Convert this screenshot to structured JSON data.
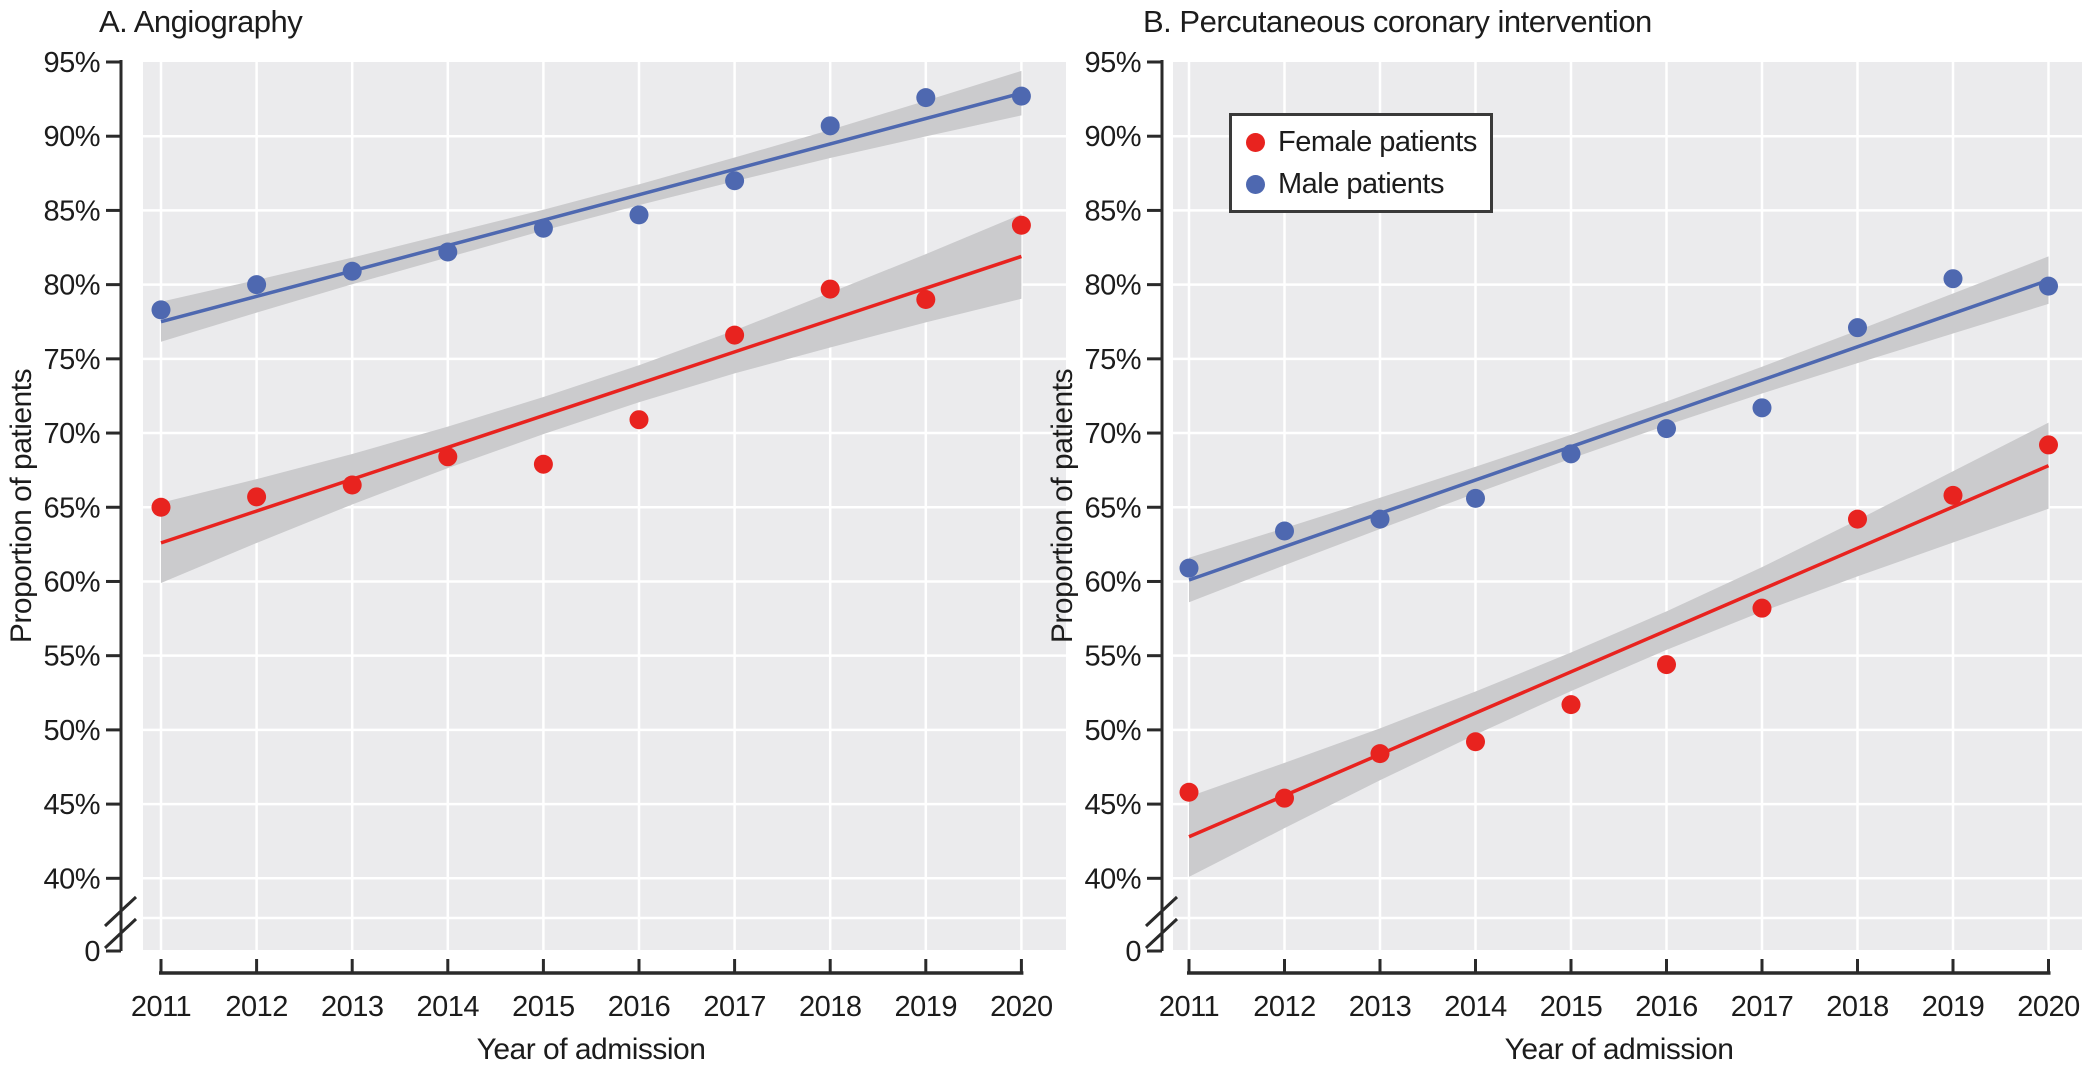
{
  "panels": [
    {
      "title": "A. Angiography",
      "x_axis_label": "Year of admission",
      "y_axis_label": "Proportion of patients"
    },
    {
      "title": "B. Percutaneous coronary intervention",
      "x_axis_label": "Year of admission",
      "y_axis_label": "Proportion of patients"
    }
  ],
  "legend": {
    "items": [
      {
        "label": "Female patients",
        "color": "#e8231f"
      },
      {
        "label": "Male patients",
        "color": "#4e68b0"
      }
    ]
  },
  "chart_data": [
    {
      "type": "scatter",
      "title": "A. Angiography",
      "xlabel": "Year of admission",
      "ylabel": "Proportion of patients",
      "x": [
        2011,
        2012,
        2013,
        2014,
        2015,
        2016,
        2017,
        2018,
        2019,
        2020
      ],
      "y_ticks": [
        95,
        90,
        85,
        80,
        75,
        70,
        65,
        60,
        55,
        50,
        45,
        40
      ],
      "zero_tick_label": "0",
      "y_axis_break": true,
      "legend_position": "none",
      "grid": true,
      "series": [
        {
          "name": "Female patients",
          "color": "#e8231f",
          "values": [
            65.0,
            65.7,
            66.5,
            68.4,
            67.9,
            70.9,
            76.6,
            79.7,
            79.0,
            84.0
          ],
          "trend_endpoints": [
            62.6,
            81.9
          ],
          "ci_halfwidths": [
            2.7,
            2.15,
            1.7,
            1.4,
            1.25,
            1.25,
            1.45,
            1.85,
            2.3,
            2.85
          ]
        },
        {
          "name": "Male patients",
          "color": "#4e68b0",
          "values": [
            78.3,
            80.0,
            80.9,
            82.2,
            83.8,
            84.7,
            87.0,
            90.7,
            92.6,
            92.7
          ],
          "trend_endpoints": [
            77.5,
            92.9
          ],
          "ci_halfwidths": [
            1.35,
            1.1,
            0.9,
            0.8,
            0.7,
            0.7,
            0.8,
            0.95,
            1.2,
            1.5
          ]
        }
      ]
    },
    {
      "type": "scatter",
      "title": "B. Percutaneous coronary intervention",
      "xlabel": "Year of admission",
      "ylabel": "Proportion of patients",
      "x": [
        2011,
        2012,
        2013,
        2014,
        2015,
        2016,
        2017,
        2018,
        2019,
        2020
      ],
      "y_ticks": [
        95,
        90,
        85,
        80,
        75,
        70,
        65,
        60,
        55,
        50,
        45,
        40
      ],
      "zero_tick_label": "0",
      "y_axis_break": true,
      "legend_position": "top-left",
      "grid": true,
      "series": [
        {
          "name": "Female patients",
          "color": "#e8231f",
          "values": [
            45.8,
            45.4,
            48.4,
            49.2,
            51.7,
            54.4,
            58.2,
            64.2,
            65.8,
            69.2
          ],
          "trend_endpoints": [
            42.8,
            67.8
          ],
          "ci_halfwidths": [
            2.7,
            2.2,
            1.75,
            1.45,
            1.3,
            1.3,
            1.5,
            1.9,
            2.4,
            2.9
          ]
        },
        {
          "name": "Male patients",
          "color": "#4e68b0",
          "values": [
            60.9,
            63.4,
            64.2,
            65.6,
            68.6,
            70.3,
            71.7,
            77.1,
            80.4,
            79.9
          ],
          "trend_endpoints": [
            60.1,
            80.3
          ],
          "ci_halfwidths": [
            1.5,
            1.25,
            1.05,
            0.9,
            0.8,
            0.8,
            0.9,
            1.1,
            1.35,
            1.6
          ]
        }
      ]
    }
  ],
  "colors": {
    "plot_bg": "#ebebed",
    "gridline": "#ffffff",
    "ci_band": "#cbcbcd",
    "axis": "#2a2a2a",
    "text": "#1c1c1c",
    "female": "#e8231f",
    "male": "#4e68b0"
  }
}
